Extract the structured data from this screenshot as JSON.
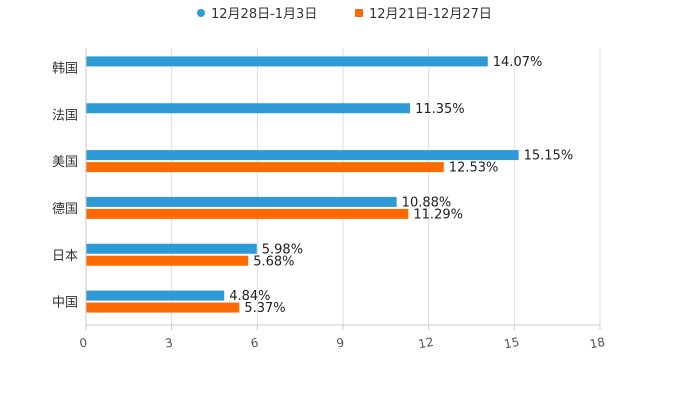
{
  "chart_data": {
    "type": "bar",
    "orientation": "horizontal",
    "title": "",
    "xlabel": "",
    "ylabel": "",
    "xlim": [
      0,
      18
    ],
    "x_ticks": [
      0,
      3,
      6,
      9,
      12,
      15,
      18
    ],
    "grid": true,
    "legend_position": "top-center",
    "categories": [
      "韩国",
      "法国",
      "美国",
      "德国",
      "日本",
      "中国"
    ],
    "series": [
      {
        "name": "12月28日-1月3日",
        "color": "#2E9BD6",
        "values": [
          14.07,
          11.35,
          15.15,
          10.88,
          5.98,
          4.84
        ],
        "labels": [
          "14.07%",
          "11.35%",
          "15.15%",
          "10.88%",
          "5.98%",
          "4.84%"
        ]
      },
      {
        "name": "12月21日-12月27日",
        "color": "#FF6A00",
        "values": [
          null,
          null,
          12.53,
          11.29,
          5.68,
          5.37
        ],
        "labels": [
          "",
          "",
          "12.53%",
          "11.29%",
          "5.68%",
          "5.37%"
        ]
      }
    ]
  }
}
